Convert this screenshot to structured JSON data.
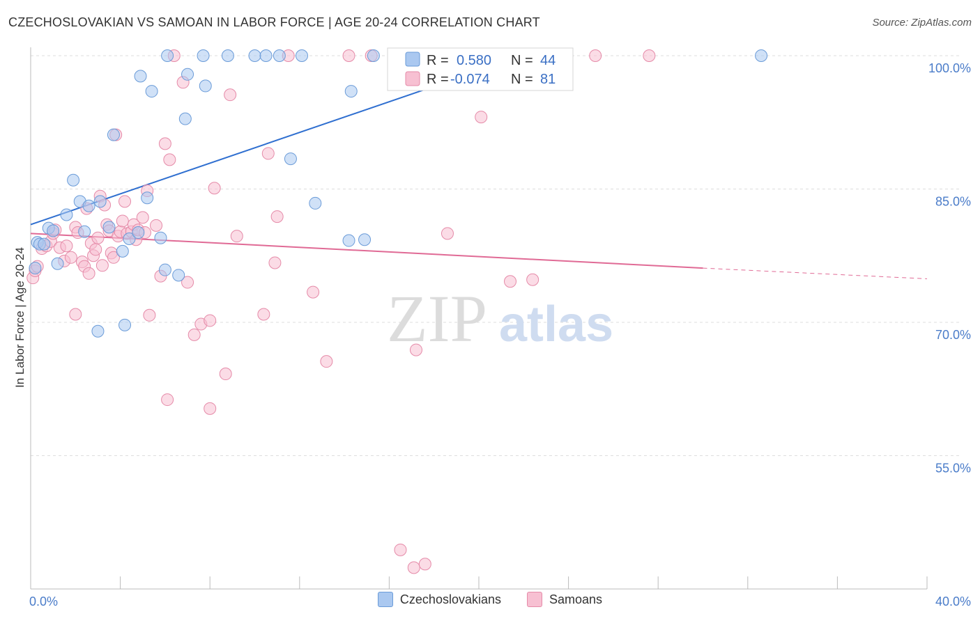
{
  "header": {
    "title": "CZECHOSLOVAKIAN VS SAMOAN IN LABOR FORCE | AGE 20-24 CORRELATION CHART",
    "source": "Source: ZipAtlas.com"
  },
  "watermark": {
    "zip": "ZIP",
    "atlas": "atlas"
  },
  "stats": [
    {
      "r_label": "R =",
      "r_value": "0.580",
      "n_label": "N =",
      "n_value": "44"
    },
    {
      "r_label": "R =",
      "r_value": "-0.074",
      "n_label": "N =",
      "n_value": "81"
    }
  ],
  "colors": {
    "blue_fill": "#aac8f0",
    "blue_stroke": "#6a9bd8",
    "blue_line": "#2f6fd0",
    "pink_fill": "#f7c0d2",
    "pink_stroke": "#e58aa8",
    "pink_line": "#e06a95",
    "axis_text": "#4a7cc9",
    "grid": "#dddddd"
  },
  "chart_data": {
    "type": "scatter",
    "title": "CZECHOSLOVAKIAN VS SAMOAN IN LABOR FORCE | AGE 20-24 CORRELATION CHART",
    "xlabel": "",
    "ylabel": "In Labor Force | Age 20-24",
    "xlim": [
      0,
      40
    ],
    "ylim": [
      40,
      100
    ],
    "x_tick_labels": [
      "0.0%",
      "40.0%"
    ],
    "y_ticks": [
      55,
      70,
      85,
      100
    ],
    "y_tick_labels": [
      "55.0%",
      "70.0%",
      "85.0%",
      "100.0%"
    ],
    "grid": true,
    "legend_position": "bottom-center",
    "series": [
      {
        "name": "Czechoslovakians",
        "color": "#aac8f0",
        "trend": {
          "x": [
            0,
            22
          ],
          "y": [
            81.0,
            100.0
          ],
          "extrapolate_to": null
        },
        "points": [
          [
            0.2,
            76.1
          ],
          [
            0.3,
            79.0
          ],
          [
            0.4,
            78.8
          ],
          [
            0.6,
            78.8
          ],
          [
            0.8,
            80.6
          ],
          [
            1.0,
            80.3
          ],
          [
            1.2,
            76.6
          ],
          [
            1.6,
            82.1
          ],
          [
            1.9,
            86.0
          ],
          [
            2.2,
            83.6
          ],
          [
            2.4,
            80.2
          ],
          [
            2.6,
            83.1
          ],
          [
            3.0,
            69.0
          ],
          [
            3.1,
            83.6
          ],
          [
            3.5,
            80.7
          ],
          [
            3.7,
            91.1
          ],
          [
            4.1,
            78.0
          ],
          [
            4.2,
            69.7
          ],
          [
            4.4,
            79.4
          ],
          [
            4.8,
            80.1
          ],
          [
            4.9,
            97.7
          ],
          [
            5.2,
            84.0
          ],
          [
            5.4,
            96.0
          ],
          [
            5.8,
            79.5
          ],
          [
            6.0,
            75.9
          ],
          [
            6.1,
            100.0
          ],
          [
            6.6,
            75.3
          ],
          [
            6.9,
            92.9
          ],
          [
            7.0,
            97.9
          ],
          [
            7.7,
            100.0
          ],
          [
            7.8,
            96.6
          ],
          [
            8.8,
            100.0
          ],
          [
            10.0,
            100.0
          ],
          [
            10.5,
            100.0
          ],
          [
            11.1,
            100.0
          ],
          [
            11.6,
            88.4
          ],
          [
            12.1,
            100.0
          ],
          [
            12.7,
            83.4
          ],
          [
            14.2,
            79.2
          ],
          [
            14.3,
            96.0
          ],
          [
            14.9,
            79.3
          ],
          [
            15.3,
            100.0
          ],
          [
            17.1,
            100.0
          ],
          [
            32.6,
            100.0
          ]
        ]
      },
      {
        "name": "Samoans",
        "color": "#f7c0d2",
        "trend": {
          "x": [
            0,
            30.0
          ],
          "y": [
            80.0,
            76.1
          ],
          "extrapolate_to": [
            40,
            74.9
          ]
        },
        "points": [
          [
            0.1,
            75.0
          ],
          [
            0.2,
            75.8
          ],
          [
            0.3,
            76.3
          ],
          [
            0.5,
            78.3
          ],
          [
            0.7,
            78.6
          ],
          [
            0.9,
            79.1
          ],
          [
            1.0,
            80.0
          ],
          [
            1.1,
            80.4
          ],
          [
            1.3,
            78.4
          ],
          [
            1.5,
            76.9
          ],
          [
            1.6,
            78.6
          ],
          [
            1.8,
            77.3
          ],
          [
            2.0,
            80.7
          ],
          [
            2.1,
            80.1
          ],
          [
            2.0,
            70.9
          ],
          [
            2.3,
            76.8
          ],
          [
            2.4,
            76.3
          ],
          [
            2.5,
            82.8
          ],
          [
            2.6,
            75.5
          ],
          [
            2.7,
            78.9
          ],
          [
            2.8,
            77.5
          ],
          [
            2.9,
            78.2
          ],
          [
            3.0,
            79.5
          ],
          [
            3.1,
            84.2
          ],
          [
            3.2,
            76.4
          ],
          [
            3.3,
            83.2
          ],
          [
            3.4,
            81.0
          ],
          [
            3.5,
            80.3
          ],
          [
            3.6,
            77.8
          ],
          [
            3.7,
            77.3
          ],
          [
            3.8,
            91.1
          ],
          [
            3.9,
            79.7
          ],
          [
            4.0,
            80.2
          ],
          [
            4.1,
            81.4
          ],
          [
            4.2,
            83.6
          ],
          [
            4.3,
            80.0
          ],
          [
            4.5,
            80.2
          ],
          [
            4.6,
            81.0
          ],
          [
            4.7,
            79.3
          ],
          [
            4.8,
            80.4
          ],
          [
            5.0,
            81.8
          ],
          [
            5.1,
            80.1
          ],
          [
            5.2,
            84.8
          ],
          [
            5.3,
            70.8
          ],
          [
            5.6,
            80.9
          ],
          [
            5.8,
            75.2
          ],
          [
            6.0,
            90.1
          ],
          [
            6.1,
            61.3
          ],
          [
            6.2,
            88.3
          ],
          [
            6.4,
            100.0
          ],
          [
            6.8,
            97.0
          ],
          [
            7.0,
            74.5
          ],
          [
            7.3,
            68.6
          ],
          [
            7.6,
            69.8
          ],
          [
            8.0,
            70.2
          ],
          [
            8.0,
            60.3
          ],
          [
            8.2,
            85.1
          ],
          [
            8.7,
            64.2
          ],
          [
            8.9,
            95.6
          ],
          [
            9.2,
            79.7
          ],
          [
            10.4,
            70.9
          ],
          [
            10.6,
            89.0
          ],
          [
            10.9,
            76.7
          ],
          [
            11.0,
            81.9
          ],
          [
            11.5,
            100.0
          ],
          [
            12.6,
            73.4
          ],
          [
            13.2,
            65.6
          ],
          [
            14.2,
            100.0
          ],
          [
            15.2,
            100.0
          ],
          [
            16.5,
            44.4
          ],
          [
            17.1,
            42.4
          ],
          [
            17.2,
            66.9
          ],
          [
            17.6,
            42.8
          ],
          [
            18.6,
            80.0
          ],
          [
            18.8,
            100.0
          ],
          [
            19.1,
            100.0
          ],
          [
            20.1,
            93.1
          ],
          [
            21.4,
            74.6
          ],
          [
            22.4,
            74.8
          ],
          [
            25.2,
            100.0
          ],
          [
            27.6,
            100.0
          ]
        ]
      }
    ]
  }
}
